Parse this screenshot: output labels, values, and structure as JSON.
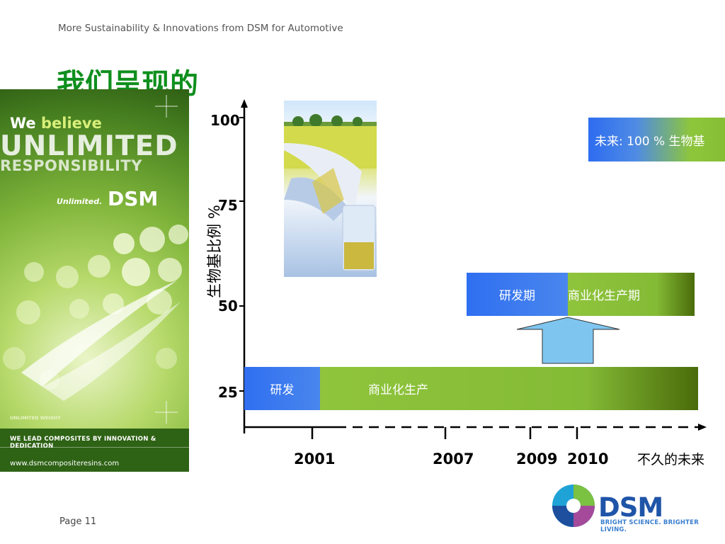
{
  "header": {
    "text": "More Sustainability & Innovations from DSM for Automotive",
    "title": "我们呈现的"
  },
  "footer": {
    "page": "Page 11"
  },
  "banner": {
    "we": "We ",
    "believe": "believe",
    "line1": "UNLIMITED",
    "line2": "RESPONSIBILITY",
    "unlimited": "Unlimited.",
    "brand": "DSM",
    "small": "UNLIMITED WEIGHT",
    "lead": "WE LEAD COMPOSITES BY INNOVATION & DEDICATION",
    "url": "www.dsmcompositeresins.com"
  },
  "logo": {
    "name": "DSM",
    "tagline": "BRIGHT SCIENCE. BRIGHTER LIVING."
  },
  "chart_data": {
    "type": "bar",
    "ylabel": "生物基比例 %",
    "yticks": [
      25,
      50,
      75,
      100
    ],
    "xticks": [
      "2001",
      "2007",
      "2009",
      "2010"
    ],
    "x_future_label": "不久的未来",
    "future_box": "未来: 100 % 生物基",
    "series": [
      {
        "level": 25,
        "phases": [
          {
            "label": "研发",
            "color": "#3a79ee"
          },
          {
            "label": "商业化生产",
            "color": "#8bc23a"
          }
        ]
      },
      {
        "level": 50,
        "phases": [
          {
            "label": "研发期",
            "color": "#3a79ee"
          },
          {
            "label": "商业化生产期",
            "color": "#8bc23a"
          }
        ]
      }
    ],
    "colors": {
      "rd": "#3a79ee",
      "commercial": "#8bc23a",
      "arrow": "#7ec6f0"
    }
  }
}
